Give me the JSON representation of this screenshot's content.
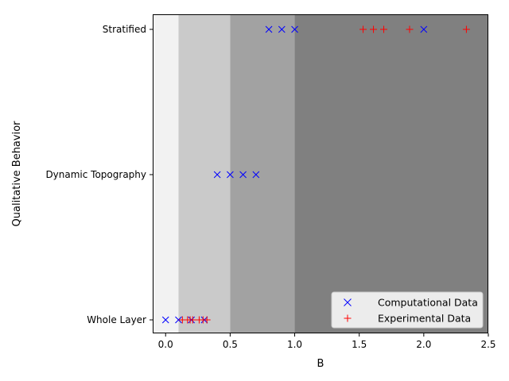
{
  "chart_data": {
    "type": "scatter",
    "xlabel": "B",
    "ylabel": "Qualitative Behavior",
    "xlim": [
      -0.1,
      2.5
    ],
    "x_ticks": [
      0.0,
      0.5,
      1.0,
      1.5,
      2.0,
      2.5
    ],
    "x_tick_labels": [
      "0.0",
      "0.5",
      "1.0",
      "1.5",
      "2.0",
      "2.5"
    ],
    "categories": [
      "Whole Layer",
      "Dynamic Topography",
      "Stratified"
    ],
    "background_bands": [
      {
        "from": -0.1,
        "to": 0.1,
        "color": "#f2f2f2"
      },
      {
        "from": 0.1,
        "to": 0.5,
        "color": "#cacaca"
      },
      {
        "from": 0.5,
        "to": 1.0,
        "color": "#a2a2a2"
      },
      {
        "from": 1.0,
        "to": 2.5,
        "color": "#808080"
      }
    ],
    "grid": false,
    "legend_position": "bottom-right",
    "series": [
      {
        "name": "Computational Data",
        "marker": "x",
        "color": "#0000ff",
        "points": [
          {
            "x": 0.0,
            "y": "Whole Layer"
          },
          {
            "x": 0.1,
            "y": "Whole Layer"
          },
          {
            "x": 0.2,
            "y": "Whole Layer"
          },
          {
            "x": 0.3,
            "y": "Whole Layer"
          },
          {
            "x": 0.4,
            "y": "Dynamic Topography"
          },
          {
            "x": 0.5,
            "y": "Dynamic Topography"
          },
          {
            "x": 0.6,
            "y": "Dynamic Topography"
          },
          {
            "x": 0.7,
            "y": "Dynamic Topography"
          },
          {
            "x": 0.8,
            "y": "Stratified"
          },
          {
            "x": 0.9,
            "y": "Stratified"
          },
          {
            "x": 1.0,
            "y": "Stratified"
          },
          {
            "x": 2.0,
            "y": "Stratified"
          }
        ]
      },
      {
        "name": "Experimental Data",
        "marker": "+",
        "color": "#ff0000",
        "points": [
          {
            "x": 0.13,
            "y": "Whole Layer"
          },
          {
            "x": 0.17,
            "y": "Whole Layer"
          },
          {
            "x": 0.19,
            "y": "Whole Layer"
          },
          {
            "x": 0.21,
            "y": "Whole Layer"
          },
          {
            "x": 0.26,
            "y": "Whole Layer"
          },
          {
            "x": 0.29,
            "y": "Whole Layer"
          },
          {
            "x": 0.32,
            "y": "Whole Layer"
          },
          {
            "x": 1.53,
            "y": "Stratified"
          },
          {
            "x": 1.61,
            "y": "Stratified"
          },
          {
            "x": 1.69,
            "y": "Stratified"
          },
          {
            "x": 1.89,
            "y": "Stratified"
          },
          {
            "x": 2.33,
            "y": "Stratified"
          }
        ]
      }
    ]
  }
}
